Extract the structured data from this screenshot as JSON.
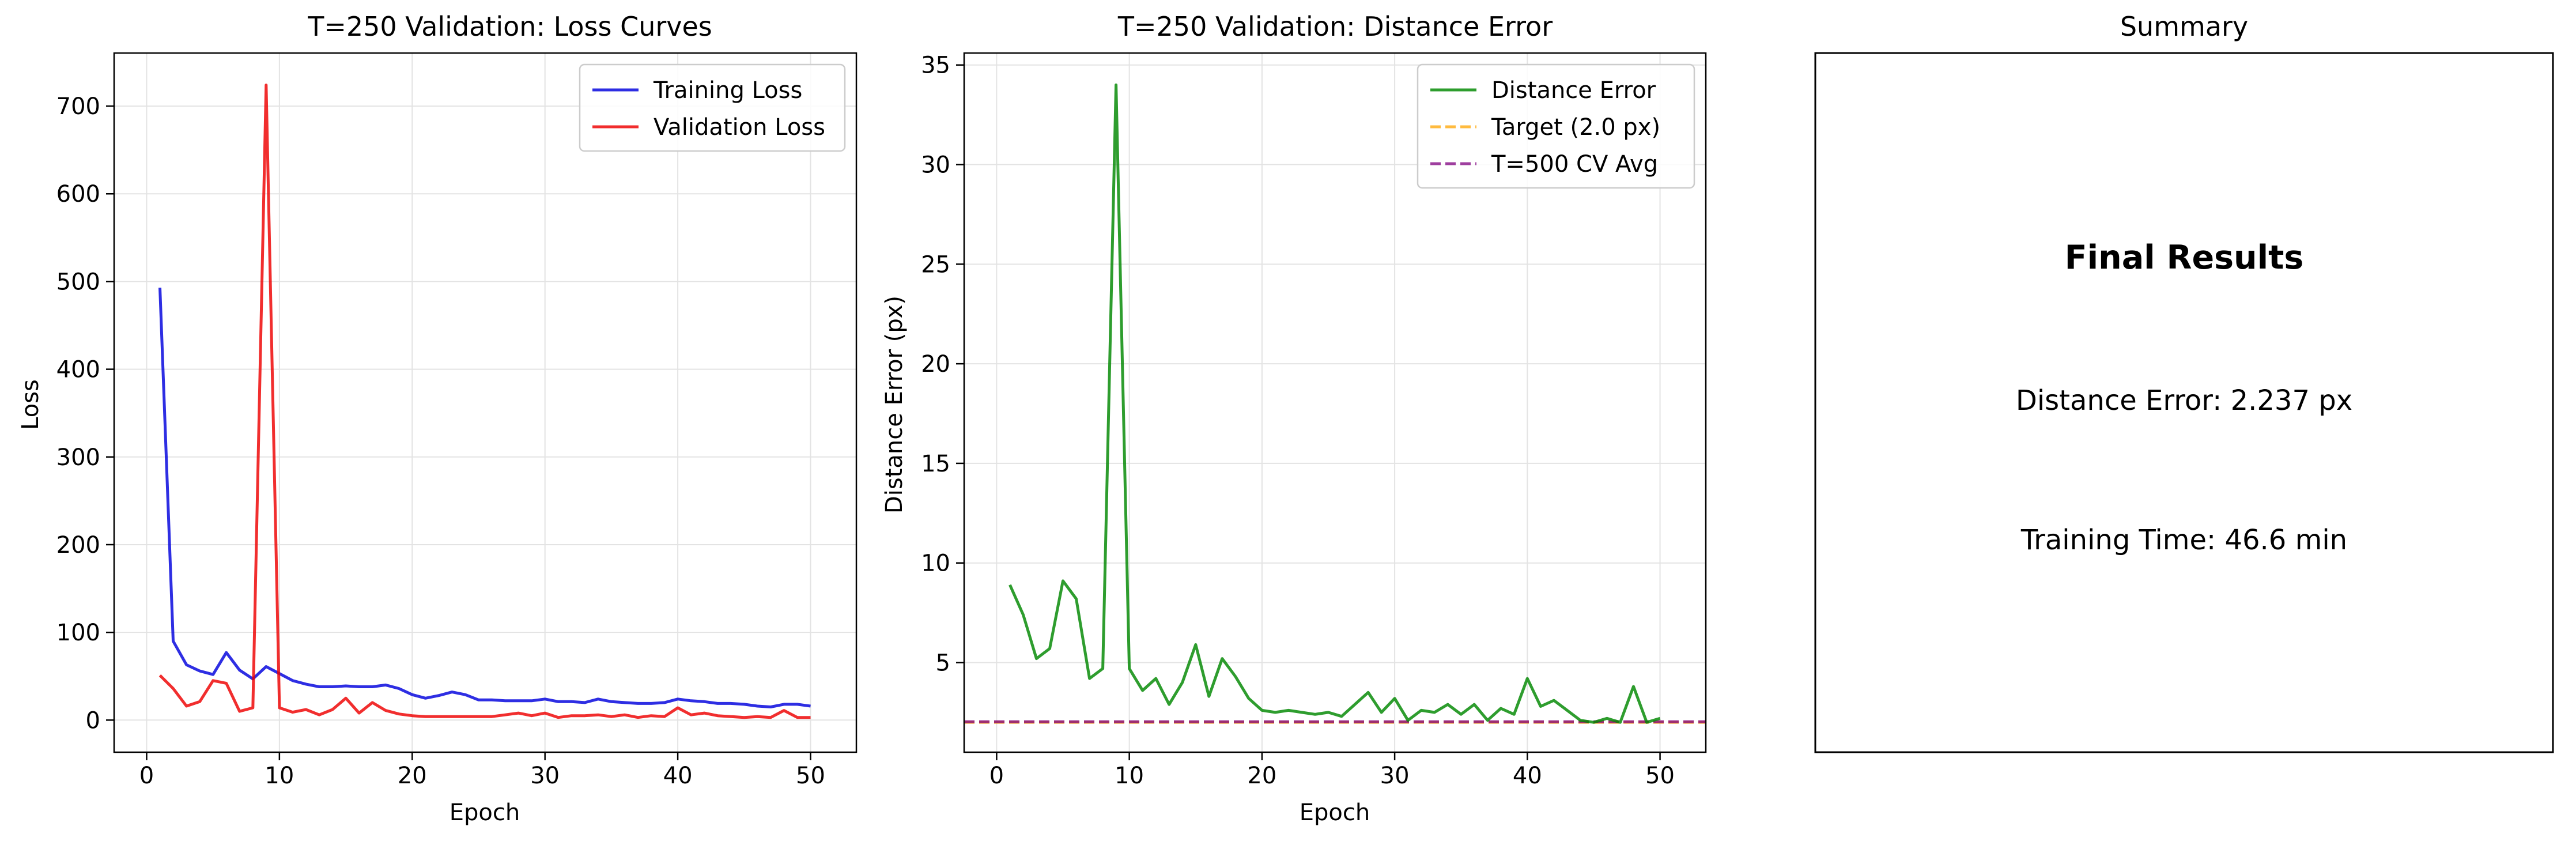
{
  "chart_data": [
    {
      "type": "line",
      "title": "T=250 Validation: Loss Curves",
      "xlabel": "Epoch",
      "ylabel": "Loss",
      "xlim": [
        -2.45,
        53.45
      ],
      "ylim": [
        -36.6,
        760.5
      ],
      "xticks": [
        0,
        10,
        20,
        30,
        40,
        50
      ],
      "yticks": [
        0,
        100,
        200,
        300,
        400,
        500,
        600,
        700
      ],
      "grid": true,
      "legend": "top-right",
      "x": [
        1,
        2,
        3,
        4,
        5,
        6,
        7,
        8,
        9,
        10,
        11,
        12,
        13,
        14,
        15,
        16,
        17,
        18,
        19,
        20,
        21,
        22,
        23,
        24,
        25,
        26,
        27,
        28,
        29,
        30,
        31,
        32,
        33,
        34,
        35,
        36,
        37,
        38,
        39,
        40,
        41,
        42,
        43,
        44,
        45,
        46,
        47,
        48,
        49,
        50
      ],
      "series": [
        {
          "name": "Training Loss",
          "color": "#0000dd",
          "values": [
            493,
            90,
            63,
            56,
            52,
            77,
            57,
            47,
            61,
            53,
            45,
            41,
            38,
            38,
            39,
            38,
            38,
            40,
            36,
            29,
            25,
            28,
            32,
            29,
            23,
            23,
            22,
            22,
            22,
            24,
            21,
            21,
            20,
            24,
            21,
            20,
            19,
            19,
            20,
            24,
            22,
            21,
            19,
            19,
            18,
            16,
            15,
            18,
            18,
            16
          ]
        },
        {
          "name": "Validation Loss",
          "color": "#ee0000",
          "values": [
            51,
            36,
            16,
            21,
            45,
            42,
            10,
            14,
            724,
            14,
            9,
            12,
            6,
            12,
            25,
            8,
            20,
            11,
            7,
            5,
            4,
            4,
            4,
            4,
            4,
            4,
            6,
            8,
            5,
            8,
            3,
            5,
            5,
            6,
            4,
            6,
            3,
            5,
            4,
            14,
            6,
            8,
            5,
            4,
            3,
            4,
            3,
            11,
            3,
            3
          ]
        }
      ]
    },
    {
      "type": "line",
      "title": "T=250 Validation: Distance Error",
      "xlabel": "Epoch",
      "ylabel": "Distance Error (px)",
      "xlim": [
        -2.45,
        53.45
      ],
      "ylim": [
        0.5,
        35.6
      ],
      "xticks": [
        0,
        10,
        20,
        30,
        40,
        50
      ],
      "yticks": [
        5,
        10,
        15,
        20,
        25,
        30,
        35
      ],
      "grid": true,
      "legend": "top-right",
      "x": [
        1,
        2,
        3,
        4,
        5,
        6,
        7,
        8,
        9,
        10,
        11,
        12,
        13,
        14,
        15,
        16,
        17,
        18,
        19,
        20,
        21,
        22,
        23,
        24,
        25,
        26,
        27,
        28,
        29,
        30,
        31,
        32,
        33,
        34,
        35,
        36,
        37,
        38,
        39,
        40,
        41,
        42,
        43,
        44,
        45,
        46,
        47,
        48,
        49,
        50
      ],
      "series": [
        {
          "name": "Distance Error",
          "color": "#008800",
          "values": [
            8.9,
            7.4,
            5.2,
            5.7,
            9.1,
            8.2,
            4.2,
            4.7,
            34.0,
            4.7,
            3.6,
            4.2,
            2.9,
            4.0,
            5.9,
            3.3,
            5.2,
            4.3,
            3.2,
            2.6,
            2.5,
            2.6,
            2.5,
            2.4,
            2.5,
            2.3,
            2.9,
            3.5,
            2.5,
            3.2,
            2.1,
            2.6,
            2.5,
            2.9,
            2.4,
            2.9,
            2.1,
            2.7,
            2.4,
            4.2,
            2.8,
            3.1,
            2.6,
            2.1,
            2.0,
            2.2,
            2.0,
            3.8,
            2.0,
            2.2
          ]
        }
      ],
      "reference_lines": [
        {
          "name": "Target (2.0 px)",
          "value": 2.0,
          "color": "#ffa500",
          "dash": "dashed"
        },
        {
          "name": "T=500 CV Avg",
          "value": 2.03,
          "color": "#800080",
          "dash": "dashed"
        }
      ]
    }
  ],
  "summary": {
    "title": "Summary",
    "heading": "Final Results",
    "distance_error": "Distance Error: 2.237 px",
    "training_time": "Training Time: 46.6 min"
  }
}
